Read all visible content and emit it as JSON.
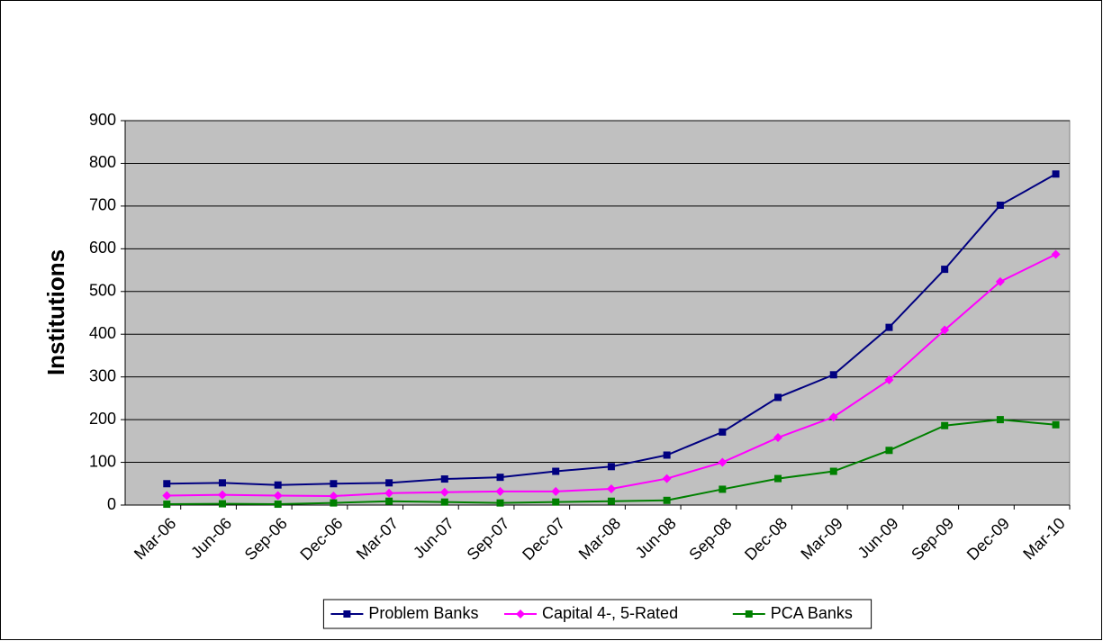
{
  "chart_data": {
    "type": "line",
    "y_label": "Institutions",
    "categories": [
      "Mar-06",
      "Jun-06",
      "Sep-06",
      "Dec-06",
      "Mar-07",
      "Jun-07",
      "Sep-07",
      "Dec-07",
      "Mar-08",
      "Jun-08",
      "Sep-08",
      "Dec-08",
      "Mar-09",
      "Jun-09",
      "Sep-09",
      "Dec-09",
      "Mar-10"
    ],
    "series": [
      {
        "name": "Problem Banks",
        "color": "#000080",
        "marker": "square",
        "values": [
          50,
          52,
          47,
          50,
          52,
          61,
          65,
          79,
          90,
          117,
          171,
          252,
          305,
          416,
          552,
          702,
          775
        ]
      },
      {
        "name": "Capital 4-, 5-Rated",
        "color": "#ff00ff",
        "marker": "diamond",
        "values": [
          22,
          24,
          22,
          21,
          28,
          30,
          32,
          32,
          38,
          62,
          100,
          158,
          206,
          293,
          410,
          523,
          587
        ]
      },
      {
        "name": "PCA Banks",
        "color": "#008000",
        "marker": "square",
        "values": [
          2,
          3,
          2,
          5,
          9,
          7,
          5,
          7,
          9,
          11,
          37,
          62,
          79,
          128,
          186,
          200,
          188
        ]
      }
    ],
    "ylim": [
      0,
      900
    ],
    "yticks": [
      0,
      100,
      200,
      300,
      400,
      500,
      600,
      700,
      800,
      900
    ],
    "grid": true,
    "legend": "bottom"
  }
}
